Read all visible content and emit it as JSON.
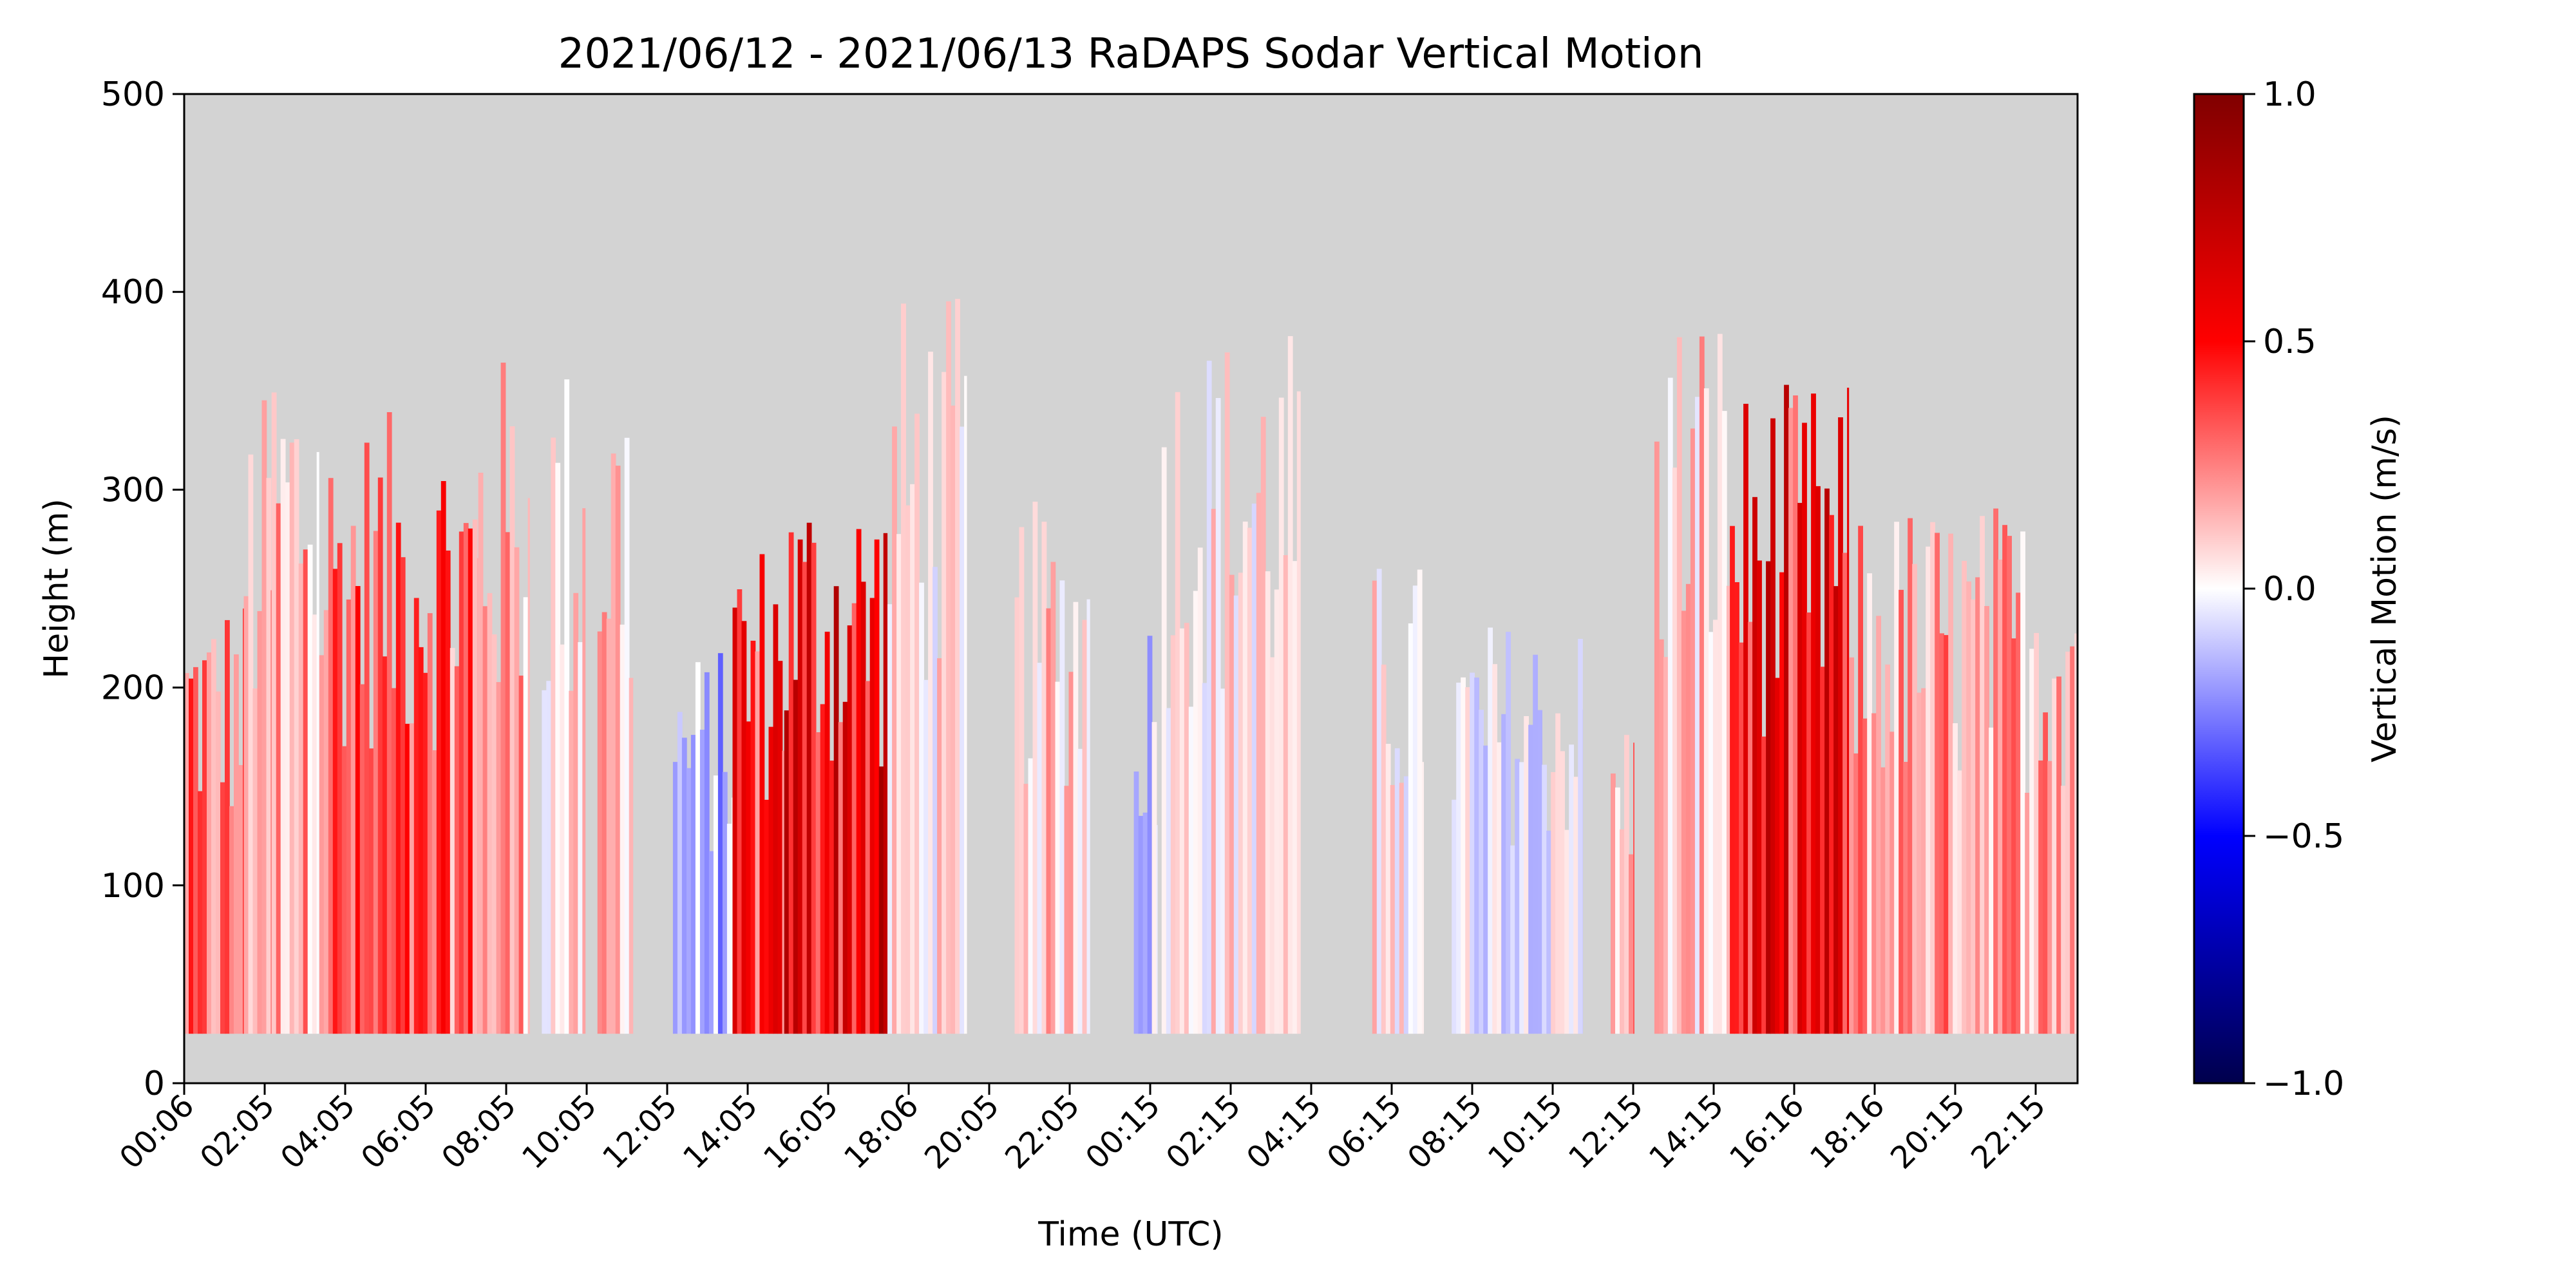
{
  "chart_data": {
    "type": "heatmap",
    "title": "2021/06/12 - 2021/06/13 RaDAPS Sodar Vertical Motion",
    "xlabel": "Time (UTC)",
    "ylabel": "Height (m)",
    "ylim": [
      0,
      500
    ],
    "y_ticks": [
      "0",
      "100",
      "200",
      "300",
      "400",
      "500"
    ],
    "x_ticks": [
      "00:06",
      "02:05",
      "04:05",
      "06:05",
      "08:05",
      "10:05",
      "12:05",
      "14:05",
      "16:05",
      "18:06",
      "20:05",
      "22:05",
      "00:15",
      "02:15",
      "04:15",
      "06:15",
      "08:15",
      "10:15",
      "12:15",
      "14:15",
      "16:16",
      "18:16",
      "20:15",
      "22:15"
    ],
    "x_range_hours": [
      0.1,
      47.75
    ],
    "colorbar": {
      "label": "Vertical Motion (m/s)",
      "range": [
        -1.0,
        1.0
      ],
      "ticks": [
        "1.0",
        "0.5",
        "0.0",
        "−0.5",
        "−1.0"
      ],
      "colormap": "seismic"
    },
    "background_color": "#d3d3d3",
    "lowest_gate_m": 25,
    "data_segments": [
      {
        "start_h": 0.1,
        "end_h": 1.6,
        "top_m": 250,
        "mean_w": 0.25
      },
      {
        "start_h": 1.6,
        "end_h": 2.3,
        "top_m": 350,
        "mean_w": 0.2
      },
      {
        "start_h": 2.3,
        "end_h": 3.5,
        "top_m": 385,
        "mean_w": 0.18
      },
      {
        "start_h": 3.5,
        "end_h": 7.5,
        "top_m": 340,
        "mean_w": 0.3
      },
      {
        "start_h": 7.5,
        "end_h": 8.8,
        "top_m": 370,
        "mean_w": 0.18
      },
      {
        "start_h": 9.1,
        "end_h": 10.2,
        "top_m": 370,
        "mean_w": 0.05
      },
      {
        "start_h": 10.5,
        "end_h": 11.4,
        "top_m": 370,
        "mean_w": 0.15
      },
      {
        "start_h": 12.4,
        "end_h": 13.9,
        "top_m": 220,
        "mean_w": -0.15
      },
      {
        "start_h": 13.9,
        "end_h": 15.2,
        "top_m": 280,
        "mean_w": 0.4
      },
      {
        "start_h": 15.2,
        "end_h": 17.8,
        "top_m": 310,
        "mean_w": 0.55
      },
      {
        "start_h": 17.8,
        "end_h": 19.8,
        "top_m": 400,
        "mean_w": 0.05
      },
      {
        "start_h": 21.0,
        "end_h": 22.9,
        "top_m": 295,
        "mean_w": 0.1
      },
      {
        "start_h": 24.0,
        "end_h": 24.6,
        "top_m": 245,
        "mean_w": -0.1
      },
      {
        "start_h": 24.7,
        "end_h": 28.2,
        "top_m": 385,
        "mean_w": 0.05
      },
      {
        "start_h": 30.0,
        "end_h": 31.3,
        "top_m": 265,
        "mean_w": 0.05
      },
      {
        "start_h": 32.0,
        "end_h": 35.3,
        "top_m": 235,
        "mean_w": -0.03
      },
      {
        "start_h": 36.0,
        "end_h": 36.6,
        "top_m": 190,
        "mean_w": 0.2
      },
      {
        "start_h": 37.1,
        "end_h": 39.0,
        "top_m": 400,
        "mean_w": 0.1
      },
      {
        "start_h": 39.0,
        "end_h": 42.0,
        "top_m": 355,
        "mean_w": 0.5
      },
      {
        "start_h": 42.0,
        "end_h": 47.75,
        "top_m": 295,
        "mean_w": 0.2
      }
    ]
  }
}
